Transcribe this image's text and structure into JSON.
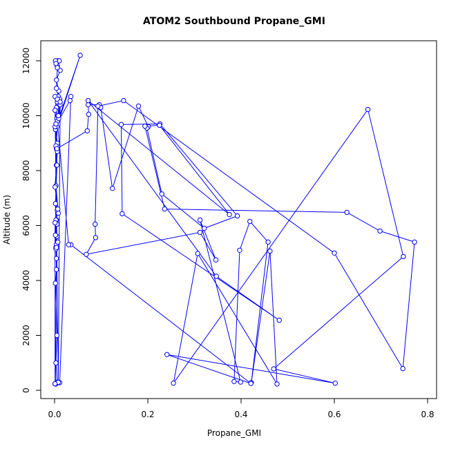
{
  "chart_data": {
    "type": "line",
    "title": "ATOM2 Southbound Propane_GMI",
    "xlabel": "Propane_GMI",
    "ylabel": "Altitude (m)",
    "xlim": [
      0,
      0.8
    ],
    "ylim": [
      0,
      12000
    ],
    "x_ticks": [
      "0.0",
      "0.2",
      "0.4",
      "0.6",
      "0.8"
    ],
    "y_ticks": [
      "0",
      "2000",
      "4000",
      "6000",
      "8000",
      "10000",
      "12000"
    ],
    "grid": false,
    "legend": "none",
    "series_color": "#0000ff",
    "marker": "open-circle",
    "series": [
      {
        "x": [
          0.001,
          0.004,
          0.006,
          0.003,
          0.005,
          0.002,
          0.004,
          0.003,
          0.005,
          0.004,
          0.006,
          0.008,
          0.003,
          0.004,
          0.006,
          0.002,
          0.005,
          0.004,
          0.006,
          0.007,
          0.009,
          0.004,
          0.012,
          0.006,
          0.008,
          0.01,
          0.002,
          0.005,
          0.003,
          0.006,
          0.004,
          0.008,
          0.011,
          0.007,
          0.006,
          0.005,
          0.055,
          0.009,
          0.012,
          0.008,
          0.003,
          0.006,
          0.004,
          0.001,
          0.007,
          0.003,
          0.005,
          0.002,
          0.004,
          0.003,
          0.007,
          0.004,
          0.002,
          0.011,
          0.035,
          0.033,
          0.001,
          0.005,
          0.07,
          0.073,
          0.072,
          0.096,
          0.099,
          0.124,
          0.18,
          0.201,
          0.198,
          0.23,
          0.321,
          0.392,
          0.226,
          0.143,
          0.145,
          0.482,
          0.347,
          0.072,
          0.375,
          0.225,
          0.194,
          0.236,
          0.627,
          0.698,
          0.772,
          0.747,
          0.6,
          0.148,
          0.093,
          0.087,
          0.088,
          0.068,
          0.312,
          0.346,
          0.312,
          0.399,
          0.385,
          0.397,
          0.419,
          0.458,
          0.422,
          0.462,
          0.477,
          0.307,
          0.255,
          0.672,
          0.748,
          0.47,
          0.602,
          0.241,
          0.421,
          0.035,
          0.03,
          0.001,
          0.006,
          0.012,
          0.008,
          0.001,
          0.003,
          0.005,
          0.002,
          0.004,
          0.001,
          0.001
        ],
        "y": [
          240,
          250,
          300,
          1000,
          2000,
          3900,
          4400,
          5200,
          5600,
          6200,
          6550,
          6450,
          7450,
          8800,
          9000,
          9500,
          9900,
          10300,
          10500,
          10650,
          10900,
          11300,
          11650,
          11800,
          12000,
          12000,
          12000,
          11850,
          11900,
          11750,
          11000,
          10700,
          10600,
          10000,
          9800,
          9600,
          12200,
          9900,
          10400,
          10000,
          8900,
          8700,
          8200,
          7400,
          6600,
          6200,
          6050,
          5650,
          5300,
          5150,
          5400,
          5200,
          230,
          280,
          10700,
          10550,
          9600,
          8800,
          9450,
          10050,
          10400,
          10400,
          10300,
          7350,
          10350,
          9600,
          9550,
          7150,
          5900,
          6350,
          9700,
          9680,
          6430,
          2550,
          4150,
          10550,
          6400,
          9650,
          9620,
          6600,
          6480,
          5800,
          5400,
          790,
          5000,
          10550,
          10350,
          6050,
          5560,
          4950,
          5750,
          4750,
          6200,
          300,
          320,
          5100,
          6150,
          5400,
          280,
          5070,
          230,
          4980,
          260,
          10230,
          4870,
          780,
          260,
          1300,
          250,
          5300,
          5300,
          10700,
          10600,
          10500,
          290,
          10200,
          9700,
          8200,
          6800,
          4800,
          6100,
          240
        ]
      }
    ]
  }
}
